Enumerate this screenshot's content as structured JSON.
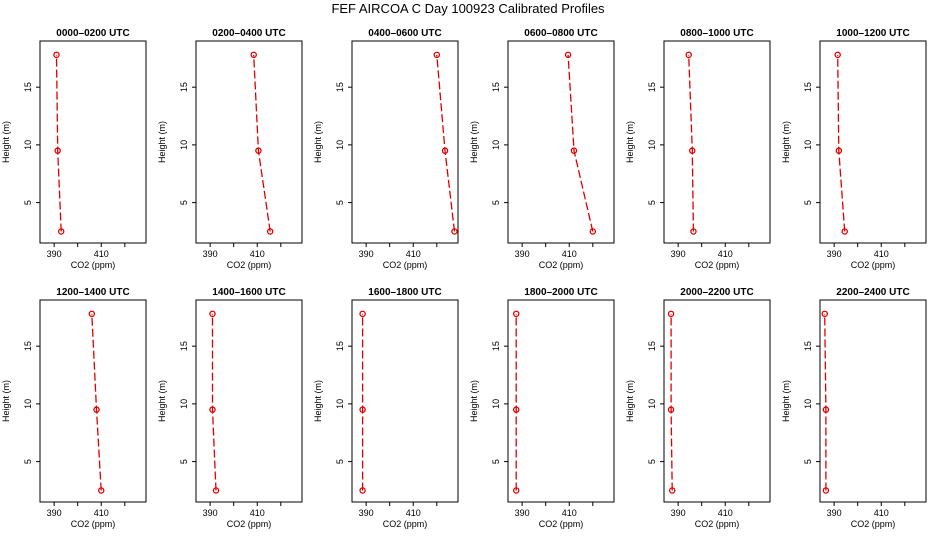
{
  "chart_data": {
    "type": "line",
    "title": "FEF AIRCOA C  Day 100923  Calibrated Profiles",
    "xlabel": "CO2 (ppm)",
    "ylabel": "Height (m)",
    "xlim": [
      384,
      429
    ],
    "ylim": [
      1.5,
      19
    ],
    "xticks": [
      390,
      400,
      410,
      420
    ],
    "xtick_labels": [
      "390",
      "",
      "410",
      ""
    ],
    "yticks": [
      5,
      10,
      15
    ],
    "heights": [
      2.5,
      9.5,
      17.8
    ],
    "panels": [
      {
        "title": "0000–0200 UTC",
        "co2": [
          393.0,
          391.5,
          391.0
        ]
      },
      {
        "title": "0200–0400 UTC",
        "co2": [
          415.5,
          410.5,
          408.5
        ]
      },
      {
        "title": "0400–0600 UTC",
        "co2": [
          427.5,
          423.5,
          420.0
        ]
      },
      {
        "title": "0600–0800 UTC",
        "co2": [
          420.0,
          412.0,
          409.5
        ]
      },
      {
        "title": "0800–1000 UTC",
        "co2": [
          396.5,
          396.0,
          394.5
        ]
      },
      {
        "title": "1000–1200 UTC",
        "co2": [
          394.5,
          392.0,
          391.5
        ]
      },
      {
        "title": "1200–1400 UTC",
        "co2": [
          410.0,
          408.0,
          406.0
        ]
      },
      {
        "title": "1400–1600 UTC",
        "co2": [
          392.5,
          391.0,
          391.0
        ]
      },
      {
        "title": "1600–1800 UTC",
        "co2": [
          388.5,
          388.5,
          388.5
        ]
      },
      {
        "title": "1800–2000 UTC",
        "co2": [
          387.5,
          387.5,
          387.5
        ]
      },
      {
        "title": "2000–2200 UTC",
        "co2": [
          387.5,
          387.0,
          387.0
        ]
      },
      {
        "title": "2200–2400 UTC",
        "co2": [
          386.5,
          386.5,
          386.0
        ]
      }
    ]
  }
}
